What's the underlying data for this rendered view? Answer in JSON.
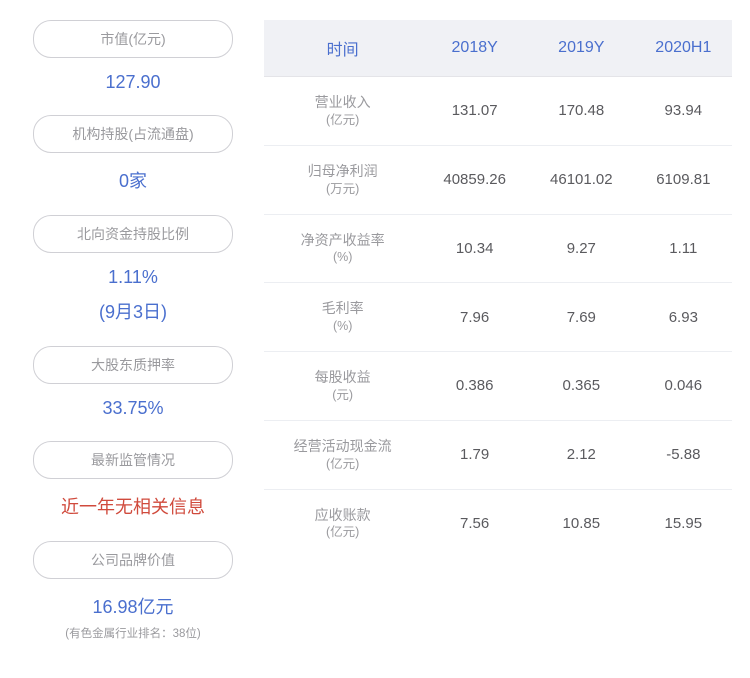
{
  "left": {
    "items": [
      {
        "label": "市值(亿元)",
        "value": "127.90",
        "valueClass": "value-blue"
      },
      {
        "label": "机构持股(占流通盘)",
        "value": "0家",
        "valueClass": "value-blue"
      },
      {
        "label": "北向资金持股比例",
        "value": "1.11%",
        "sub": "(9月3日)",
        "valueClass": "value-blue"
      },
      {
        "label": "大股东质押率",
        "value": "33.75%",
        "valueClass": "value-blue"
      },
      {
        "label": "最新监管情况",
        "value": "近一年无相关信息",
        "valueClass": "value-red"
      },
      {
        "label": "公司品牌价值",
        "value": "16.98亿元",
        "valueClass": "value-blue",
        "note": "(有色金属行业排名：38位)"
      }
    ]
  },
  "table": {
    "headers": [
      "时间",
      "2018Y",
      "2019Y",
      "2020H1"
    ],
    "rows": [
      {
        "label": "营业收入",
        "unit": "(亿元)",
        "cells": [
          "131.07",
          "170.48",
          "93.94"
        ]
      },
      {
        "label": "归母净利润",
        "unit": "(万元)",
        "cells": [
          "40859.26",
          "46101.02",
          "6109.81"
        ]
      },
      {
        "label": "净资产收益率",
        "unit": "(%)",
        "cells": [
          "10.34",
          "9.27",
          "1.11"
        ]
      },
      {
        "label": "毛利率",
        "unit": "(%)",
        "cells": [
          "7.96",
          "7.69",
          "6.93"
        ]
      },
      {
        "label": "每股收益",
        "unit": "(元)",
        "cells": [
          "0.386",
          "0.365",
          "0.046"
        ]
      },
      {
        "label": "经营活动现金流",
        "unit": "(亿元)",
        "cells": [
          "1.79",
          "2.12",
          "-5.88"
        ]
      },
      {
        "label": "应收账款",
        "unit": "(亿元)",
        "cells": [
          "7.56",
          "10.85",
          "15.95"
        ]
      }
    ]
  },
  "colors": {
    "header_bg": "#f0f1f5",
    "header_text": "#4a6fce",
    "value_blue": "#4a6fce",
    "value_red": "#d04a3c",
    "label_gray": "#9a9a9e",
    "cell_text": "#5a5a5e",
    "border": "#eceef2"
  }
}
